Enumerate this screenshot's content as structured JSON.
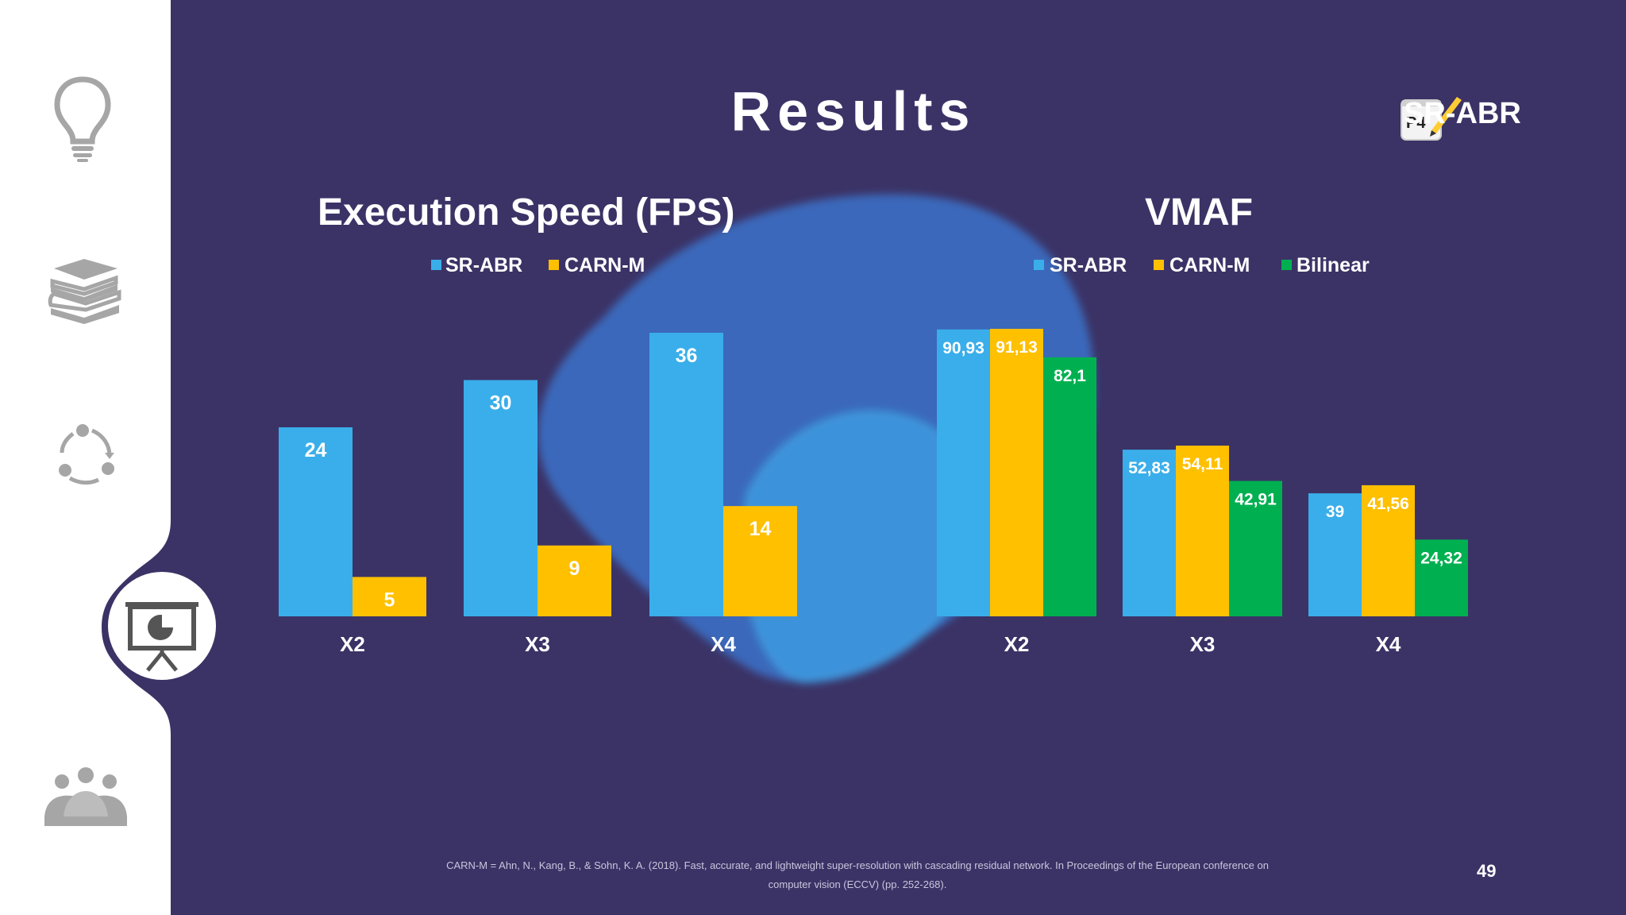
{
  "slide": {
    "title": "Results",
    "brand": {
      "label": "SR-ABR",
      "badge": "P4"
    },
    "footnote": "CARN-M = Ahn, N., Kang, B., & Sohn, K. A. (2018). Fast, accurate, and lightweight super-resolution with cascading residual network. In Proceedings of the European conference on computer vision (ECCV) (pp. 252-268).",
    "page_number": "49"
  },
  "sidebar": {
    "items": [
      {
        "icon": "lightbulb-icon",
        "active": false
      },
      {
        "icon": "books-icon",
        "active": false
      },
      {
        "icon": "cycle-icon",
        "active": false
      },
      {
        "icon": "presentation-chart-icon",
        "active": true
      },
      {
        "icon": "group-icon",
        "active": false
      }
    ]
  },
  "colors": {
    "background": "#3b3366",
    "sr_abr": "#3aaeea",
    "carn_m": "#ffc000",
    "bilinear": "#00b050",
    "sidebar": "#ffffff",
    "icon_gray": "#a6a6a6"
  },
  "chart_data": [
    {
      "type": "bar",
      "title": "Execution Speed (FPS)",
      "categories": [
        "X2",
        "X3",
        "X4"
      ],
      "series": [
        {
          "name": "SR-ABR",
          "values": [
            24,
            30,
            36
          ],
          "labels": [
            "24",
            "30",
            "36"
          ],
          "color": "#3aaeea"
        },
        {
          "name": "CARN-M",
          "values": [
            5,
            9,
            14
          ],
          "labels": [
            "5",
            "9",
            "14"
          ],
          "color": "#ffc000"
        }
      ],
      "ylim": [
        0,
        40
      ],
      "legend": "top",
      "grid": false
    },
    {
      "type": "bar",
      "title": "VMAF",
      "categories": [
        "X2",
        "X3",
        "X4"
      ],
      "series": [
        {
          "name": "SR-ABR",
          "values": [
            90.93,
            52.83,
            39
          ],
          "labels": [
            "90,93",
            "52,83",
            "39"
          ],
          "color": "#3aaeea"
        },
        {
          "name": "CARN-M",
          "values": [
            91.13,
            54.11,
            41.56
          ],
          "labels": [
            "91,13",
            "54,11",
            "41,56"
          ],
          "color": "#ffc000"
        },
        {
          "name": "Bilinear",
          "values": [
            82.1,
            42.91,
            24.32
          ],
          "labels": [
            "82,1",
            "42,91",
            "24,32"
          ],
          "color": "#00b050"
        }
      ],
      "ylim": [
        0,
        91.13
      ],
      "legend": "top",
      "grid": false
    }
  ]
}
